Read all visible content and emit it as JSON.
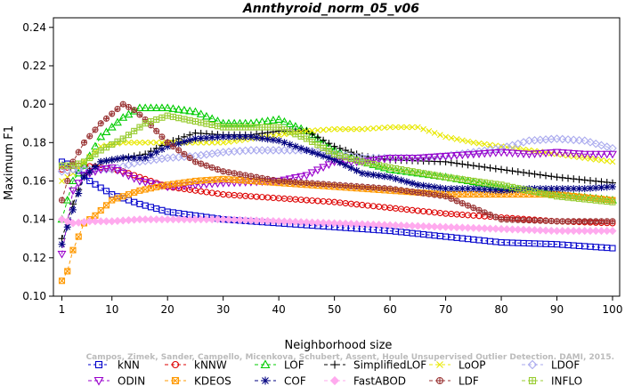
{
  "chart_data": {
    "type": "line",
    "title": "Annthyroid_norm_05_v06",
    "xlabel": "Neighborhood size",
    "ylabel": "Maximum F1",
    "xlim": [
      1,
      100
    ],
    "ylim": [
      0.1,
      0.245
    ],
    "xticks": [
      1,
      10,
      20,
      30,
      40,
      50,
      60,
      70,
      80,
      90,
      100
    ],
    "yticks": [
      0.1,
      0.12,
      0.14,
      0.16,
      0.18,
      0.2,
      0.22,
      0.24
    ],
    "xtick_labels": [
      "1",
      "10",
      "20",
      "30",
      "40",
      "50",
      "60",
      "70",
      "80",
      "90",
      "100"
    ],
    "ytick_labels": [
      "0.10",
      "0.12",
      "0.14",
      "0.16",
      "0.18",
      "0.20",
      "0.22",
      "0.24"
    ],
    "grid": false,
    "legend_position": "bottom",
    "watermark": "Campos, Zimek, Sander, Campello, Micenkova, Schubert, Assent, Houle  Unsupervised Outlier Detection. DAMI, 2015.",
    "series": [
      {
        "name": "kNN",
        "color": "#0000cc",
        "marker": "square",
        "dash": "3,3",
        "knots": [
          [
            1,
            0.17
          ],
          [
            3,
            0.168
          ],
          [
            6,
            0.16
          ],
          [
            10,
            0.153
          ],
          [
            15,
            0.148
          ],
          [
            20,
            0.144
          ],
          [
            30,
            0.14
          ],
          [
            40,
            0.138
          ],
          [
            50,
            0.136
          ],
          [
            60,
            0.134
          ],
          [
            70,
            0.131
          ],
          [
            80,
            0.128
          ],
          [
            90,
            0.127
          ],
          [
            100,
            0.125
          ]
        ]
      },
      {
        "name": "kNNW",
        "color": "#dd0000",
        "marker": "circle",
        "dash": "4,3",
        "knots": [
          [
            1,
            0.166
          ],
          [
            3,
            0.168
          ],
          [
            5,
            0.168
          ],
          [
            8,
            0.167
          ],
          [
            12,
            0.165
          ],
          [
            16,
            0.161
          ],
          [
            20,
            0.157
          ],
          [
            30,
            0.153
          ],
          [
            40,
            0.151
          ],
          [
            50,
            0.149
          ],
          [
            60,
            0.146
          ],
          [
            70,
            0.143
          ],
          [
            80,
            0.141
          ],
          [
            90,
            0.139
          ],
          [
            100,
            0.138
          ]
        ]
      },
      {
        "name": "LOF",
        "color": "#00cc00",
        "marker": "triangle",
        "dash": "4,3",
        "knots": [
          [
            1,
            0.14
          ],
          [
            3,
            0.16
          ],
          [
            5,
            0.168
          ],
          [
            8,
            0.183
          ],
          [
            12,
            0.193
          ],
          [
            15,
            0.198
          ],
          [
            20,
            0.198
          ],
          [
            25,
            0.196
          ],
          [
            30,
            0.19
          ],
          [
            35,
            0.19
          ],
          [
            40,
            0.192
          ],
          [
            45,
            0.186
          ],
          [
            50,
            0.176
          ],
          [
            55,
            0.17
          ],
          [
            60,
            0.166
          ],
          [
            70,
            0.162
          ],
          [
            80,
            0.157
          ],
          [
            90,
            0.153
          ],
          [
            100,
            0.15
          ]
        ]
      },
      {
        "name": "SimplifiedLOF",
        "color": "#000000",
        "marker": "plus",
        "dash": "4,3",
        "knots": [
          [
            1,
            0.13
          ],
          [
            3,
            0.148
          ],
          [
            5,
            0.163
          ],
          [
            8,
            0.17
          ],
          [
            12,
            0.172
          ],
          [
            16,
            0.174
          ],
          [
            20,
            0.18
          ],
          [
            25,
            0.185
          ],
          [
            30,
            0.184
          ],
          [
            35,
            0.184
          ],
          [
            40,
            0.186
          ],
          [
            45,
            0.186
          ],
          [
            50,
            0.178
          ],
          [
            55,
            0.173
          ],
          [
            60,
            0.171
          ],
          [
            70,
            0.17
          ],
          [
            80,
            0.166
          ],
          [
            90,
            0.162
          ],
          [
            100,
            0.159
          ]
        ]
      },
      {
        "name": "LoOP",
        "color": "#e8e800",
        "marker": "x",
        "dash": "4,3",
        "knots": [
          [
            1,
            0.16
          ],
          [
            3,
            0.164
          ],
          [
            5,
            0.17
          ],
          [
            8,
            0.178
          ],
          [
            12,
            0.18
          ],
          [
            16,
            0.18
          ],
          [
            20,
            0.18
          ],
          [
            25,
            0.18
          ],
          [
            30,
            0.18
          ],
          [
            35,
            0.182
          ],
          [
            40,
            0.184
          ],
          [
            45,
            0.186
          ],
          [
            50,
            0.187
          ],
          [
            55,
            0.187
          ],
          [
            60,
            0.188
          ],
          [
            65,
            0.188
          ],
          [
            70,
            0.183
          ],
          [
            75,
            0.18
          ],
          [
            80,
            0.178
          ],
          [
            85,
            0.176
          ],
          [
            90,
            0.174
          ],
          [
            95,
            0.172
          ],
          [
            100,
            0.17
          ]
        ]
      },
      {
        "name": "LDOF",
        "color": "#aaaaee",
        "marker": "diamond",
        "dash": "4,3",
        "knots": [
          [
            1,
            0.165
          ],
          [
            3,
            0.166
          ],
          [
            6,
            0.166
          ],
          [
            10,
            0.166
          ],
          [
            15,
            0.17
          ],
          [
            20,
            0.172
          ],
          [
            25,
            0.173
          ],
          [
            30,
            0.175
          ],
          [
            35,
            0.176
          ],
          [
            40,
            0.176
          ],
          [
            45,
            0.176
          ],
          [
            50,
            0.174
          ],
          [
            55,
            0.172
          ],
          [
            60,
            0.172
          ],
          [
            65,
            0.172
          ],
          [
            70,
            0.173
          ],
          [
            75,
            0.175
          ],
          [
            80,
            0.177
          ],
          [
            85,
            0.181
          ],
          [
            90,
            0.182
          ],
          [
            95,
            0.181
          ],
          [
            100,
            0.177
          ]
        ]
      },
      {
        "name": "ODIN",
        "color": "#9900cc",
        "marker": "down-triangle",
        "dash": "4,3",
        "knots": [
          [
            1,
            0.122
          ],
          [
            3,
            0.155
          ],
          [
            5,
            0.163
          ],
          [
            8,
            0.166
          ],
          [
            10,
            0.167
          ],
          [
            15,
            0.16
          ],
          [
            20,
            0.157
          ],
          [
            30,
            0.159
          ],
          [
            40,
            0.16
          ],
          [
            45,
            0.163
          ],
          [
            50,
            0.17
          ],
          [
            55,
            0.17
          ],
          [
            60,
            0.172
          ],
          [
            65,
            0.172
          ],
          [
            70,
            0.173
          ],
          [
            75,
            0.174
          ],
          [
            80,
            0.175
          ],
          [
            85,
            0.174
          ],
          [
            90,
            0.175
          ],
          [
            95,
            0.174
          ],
          [
            100,
            0.174
          ]
        ]
      },
      {
        "name": "KDEOS",
        "color": "#ff9900",
        "marker": "square-x",
        "dash": "4,3",
        "knots": [
          [
            1,
            0.108
          ],
          [
            2,
            0.113
          ],
          [
            3,
            0.124
          ],
          [
            5,
            0.138
          ],
          [
            7,
            0.142
          ],
          [
            10,
            0.15
          ],
          [
            15,
            0.155
          ],
          [
            20,
            0.158
          ],
          [
            25,
            0.16
          ],
          [
            30,
            0.161
          ],
          [
            40,
            0.159
          ],
          [
            50,
            0.157
          ],
          [
            60,
            0.155
          ],
          [
            70,
            0.153
          ],
          [
            80,
            0.153
          ],
          [
            90,
            0.153
          ],
          [
            100,
            0.15
          ]
        ]
      },
      {
        "name": "COF",
        "color": "#000080",
        "marker": "asterisk",
        "dash": "4,3",
        "knots": [
          [
            1,
            0.127
          ],
          [
            3,
            0.145
          ],
          [
            5,
            0.162
          ],
          [
            8,
            0.17
          ],
          [
            12,
            0.172
          ],
          [
            16,
            0.172
          ],
          [
            20,
            0.178
          ],
          [
            25,
            0.182
          ],
          [
            30,
            0.183
          ],
          [
            35,
            0.183
          ],
          [
            40,
            0.181
          ],
          [
            45,
            0.176
          ],
          [
            50,
            0.171
          ],
          [
            55,
            0.164
          ],
          [
            60,
            0.162
          ],
          [
            65,
            0.158
          ],
          [
            70,
            0.156
          ],
          [
            75,
            0.156
          ],
          [
            80,
            0.155
          ],
          [
            85,
            0.156
          ],
          [
            90,
            0.156
          ],
          [
            95,
            0.156
          ],
          [
            100,
            0.157
          ]
        ]
      },
      {
        "name": "FastABOD",
        "color": "#ffaaee",
        "marker": "diamond-filled",
        "dash": "4,3",
        "knots": [
          [
            1,
            0.14
          ],
          [
            3,
            0.138
          ],
          [
            6,
            0.139
          ],
          [
            10,
            0.139
          ],
          [
            15,
            0.14
          ],
          [
            20,
            0.14
          ],
          [
            30,
            0.14
          ],
          [
            40,
            0.139
          ],
          [
            50,
            0.138
          ],
          [
            60,
            0.137
          ],
          [
            70,
            0.136
          ],
          [
            80,
            0.135
          ],
          [
            90,
            0.134
          ],
          [
            100,
            0.134
          ]
        ]
      },
      {
        "name": "LDF",
        "color": "#993333",
        "marker": "circle-plus",
        "dash": "4,3",
        "knots": [
          [
            1,
            0.15
          ],
          [
            3,
            0.17
          ],
          [
            5,
            0.18
          ],
          [
            8,
            0.19
          ],
          [
            10,
            0.195
          ],
          [
            12,
            0.2
          ],
          [
            14,
            0.197
          ],
          [
            16,
            0.192
          ],
          [
            20,
            0.18
          ],
          [
            25,
            0.17
          ],
          [
            30,
            0.165
          ],
          [
            40,
            0.16
          ],
          [
            50,
            0.158
          ],
          [
            60,
            0.156
          ],
          [
            70,
            0.152
          ],
          [
            80,
            0.14
          ],
          [
            90,
            0.139
          ],
          [
            100,
            0.139
          ]
        ]
      },
      {
        "name": "INFLO",
        "color": "#99cc33",
        "marker": "square-cross",
        "dash": "4,3",
        "knots": [
          [
            1,
            0.168
          ],
          [
            3,
            0.168
          ],
          [
            5,
            0.17
          ],
          [
            8,
            0.176
          ],
          [
            12,
            0.182
          ],
          [
            16,
            0.19
          ],
          [
            20,
            0.194
          ],
          [
            25,
            0.191
          ],
          [
            30,
            0.188
          ],
          [
            35,
            0.188
          ],
          [
            40,
            0.188
          ],
          [
            45,
            0.182
          ],
          [
            50,
            0.174
          ],
          [
            55,
            0.17
          ],
          [
            60,
            0.167
          ],
          [
            70,
            0.162
          ],
          [
            80,
            0.158
          ],
          [
            90,
            0.152
          ],
          [
            100,
            0.149
          ]
        ]
      }
    ]
  }
}
